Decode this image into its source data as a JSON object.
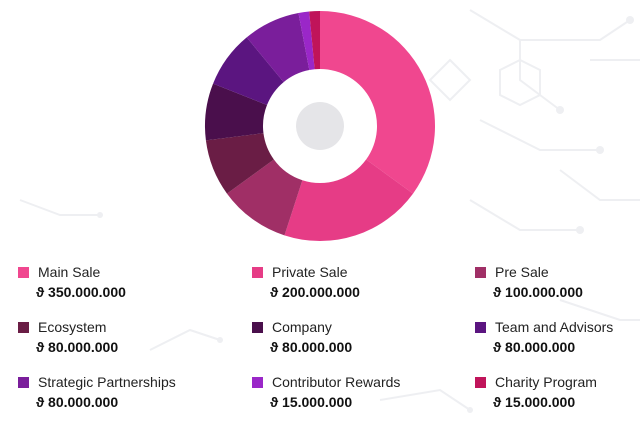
{
  "chart_data": {
    "type": "pie",
    "donut": true,
    "title": "",
    "series": [
      {
        "name": "Main Sale",
        "value": 350000000,
        "amount": "ϑ 350.000.000",
        "color": "#f0478f"
      },
      {
        "name": "Private Sale",
        "value": 200000000,
        "amount": "ϑ 200.000.000",
        "color": "#e63c86"
      },
      {
        "name": "Pre Sale",
        "value": 100000000,
        "amount": "ϑ 100.000.000",
        "color": "#a02f66"
      },
      {
        "name": "Ecosystem",
        "value": 80000000,
        "amount": "ϑ 80.000.000",
        "color": "#6a1d45"
      },
      {
        "name": "Company",
        "value": 80000000,
        "amount": "ϑ 80.000.000",
        "color": "#4a0f4c"
      },
      {
        "name": "Team and Advisors",
        "value": 80000000,
        "amount": "ϑ 80.000.000",
        "color": "#5b1580"
      },
      {
        "name": "Strategic Partnerships",
        "value": 80000000,
        "amount": "ϑ 80.000.000",
        "color": "#7a1e9b"
      },
      {
        "name": "Contributor Rewards",
        "value": 15000000,
        "amount": "ϑ 15.000.000",
        "color": "#9a27c8"
      },
      {
        "name": "Charity Program",
        "value": 15000000,
        "amount": "ϑ 15.000.000",
        "color": "#c0145a"
      }
    ]
  },
  "colors": {
    "center_disc": "#e5e5e8",
    "circuit_lines": "#eeeff2"
  }
}
